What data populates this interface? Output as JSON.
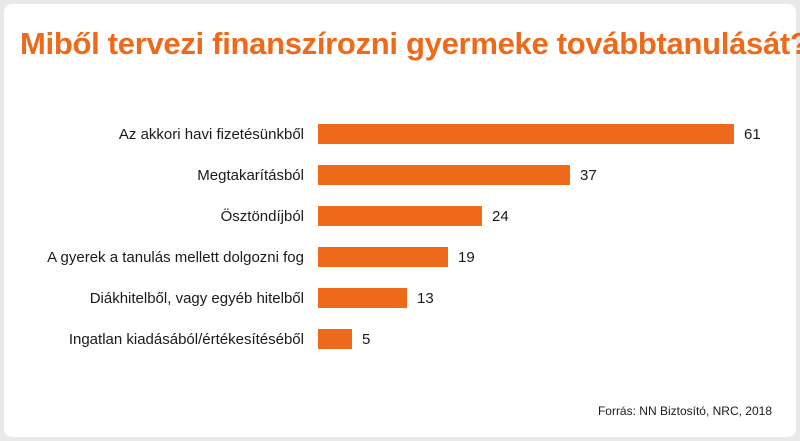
{
  "colors": {
    "accent": "#ee6a1a",
    "text": "#1a1a1a"
  },
  "title": "Miből tervezi finanszírozni gyermeke továbbtanulását?",
  "source": "Forrás: NN Biztosító, NRC, 2018",
  "chart_data": {
    "type": "bar",
    "orientation": "horizontal",
    "title": "Miből tervezi finanszírozni gyermeke továbbtanulását?",
    "categories": [
      "Az akkori havi fizetésünkből",
      "Megtakarításból",
      "Ösztöndíjból",
      "A gyerek a tanulás mellett dolgozni fog",
      "Diákhitelből, vagy egyéb hitelből",
      "Ingatlan kiadásából/értékesítéséből"
    ],
    "values": [
      61,
      37,
      24,
      19,
      13,
      5
    ],
    "xlim": [
      0,
      61
    ],
    "grid": false,
    "legend": "none",
    "bar_color": "#ee6a1a"
  }
}
